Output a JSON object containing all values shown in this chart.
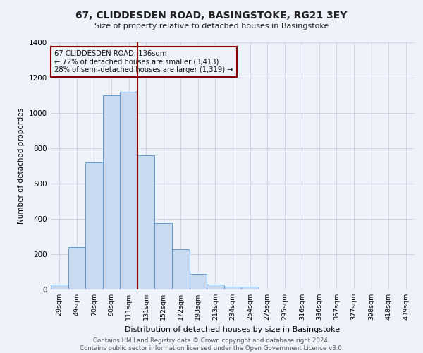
{
  "title": "67, CLIDDESDEN ROAD, BASINGSTOKE, RG21 3EY",
  "subtitle": "Size of property relative to detached houses in Basingstoke",
  "xlabel": "Distribution of detached houses by size in Basingstoke",
  "ylabel": "Number of detached properties",
  "bar_labels": [
    "29sqm",
    "49sqm",
    "70sqm",
    "90sqm",
    "111sqm",
    "131sqm",
    "152sqm",
    "172sqm",
    "193sqm",
    "213sqm",
    "234sqm",
    "254sqm",
    "275sqm",
    "295sqm",
    "316sqm",
    "336sqm",
    "357sqm",
    "377sqm",
    "398sqm",
    "418sqm",
    "439sqm"
  ],
  "bar_values": [
    30,
    240,
    720,
    1100,
    1120,
    760,
    375,
    228,
    90,
    30,
    15,
    15,
    0,
    0,
    0,
    0,
    0,
    0,
    0,
    0,
    0
  ],
  "bar_color": "#c8d9f0",
  "bar_edgecolor": "#5b9bd5",
  "ylim": [
    0,
    1400
  ],
  "yticks": [
    0,
    200,
    400,
    600,
    800,
    1000,
    1200,
    1400
  ],
  "property_line_color": "#8b0000",
  "annotation_title": "67 CLIDDESDEN ROAD: 136sqm",
  "annotation_line1": "← 72% of detached houses are smaller (3,413)",
  "annotation_line2": "28% of semi-detached houses are larger (1,319) →",
  "annotation_box_edgecolor": "#8b0000",
  "footnote1": "Contains HM Land Registry data © Crown copyright and database right 2024.",
  "footnote2": "Contains public sector information licensed under the Open Government Licence v3.0.",
  "background_color": "#eef2fa",
  "grid_color": "#c8d0e0"
}
